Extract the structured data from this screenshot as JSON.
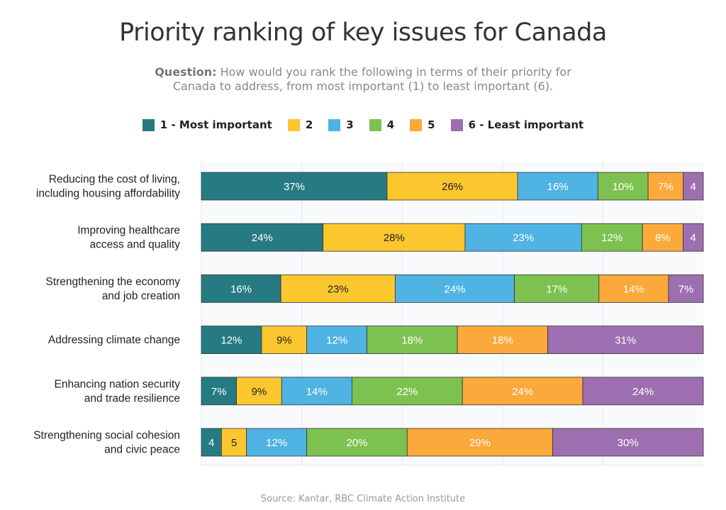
{
  "title": "Priority ranking of key issues for Canada",
  "question_label": "Question:",
  "question_text": "How would you rank the following in terms of their priority for Canada to address, from most important (1) to least important (6).",
  "source": "Source: Kantar, RBC Climate Action Institute",
  "chart_data": {
    "type": "bar",
    "orientation": "horizontal",
    "stacked": true,
    "xlim": [
      0,
      100
    ],
    "grid": true,
    "legend_position": "top",
    "categories": [
      [
        "Reducing the cost of living,",
        "including housing affordability"
      ],
      [
        "Improving healthcare",
        "access and quality"
      ],
      [
        "Strengthening the economy",
        "and job creation"
      ],
      [
        "Addressing climate change"
      ],
      [
        "Enhancing nation security",
        "and trade resilience"
      ],
      [
        "Strengthening social cohesion",
        "and civic peace"
      ]
    ],
    "series": [
      {
        "name": "1 - Most important",
        "color": "#267b82",
        "values": [
          37,
          24,
          16,
          12,
          7,
          4
        ],
        "labels": [
          "37%",
          "24%",
          "16%",
          "12%",
          "7%",
          "4"
        ]
      },
      {
        "name": "2",
        "color": "#fcc72e",
        "values": [
          26,
          28,
          23,
          9,
          9,
          5
        ],
        "labels": [
          "26%",
          "28%",
          "23%",
          "9%",
          "9%",
          "5"
        ]
      },
      {
        "name": "3",
        "color": "#4fb3e3",
        "values": [
          16,
          23,
          24,
          12,
          14,
          12
        ],
        "labels": [
          "16%",
          "23%",
          "24%",
          "12%",
          "14%",
          "12%"
        ]
      },
      {
        "name": "4",
        "color": "#7dc250",
        "values": [
          10,
          12,
          17,
          18,
          22,
          20
        ],
        "labels": [
          "10%",
          "12%",
          "17%",
          "18%",
          "22%",
          "20%"
        ]
      },
      {
        "name": "5",
        "color": "#fba93a",
        "values": [
          7,
          8,
          14,
          18,
          24,
          29
        ],
        "labels": [
          "7%",
          "8%",
          "14%",
          "18%",
          "24%",
          "29%"
        ]
      },
      {
        "name": "6 - Least important",
        "color": "#9d6fb0",
        "values": [
          4,
          4,
          7,
          31,
          24,
          30
        ],
        "labels": [
          "4",
          "4",
          "7%",
          "31%",
          "24%",
          "30%"
        ]
      }
    ]
  }
}
